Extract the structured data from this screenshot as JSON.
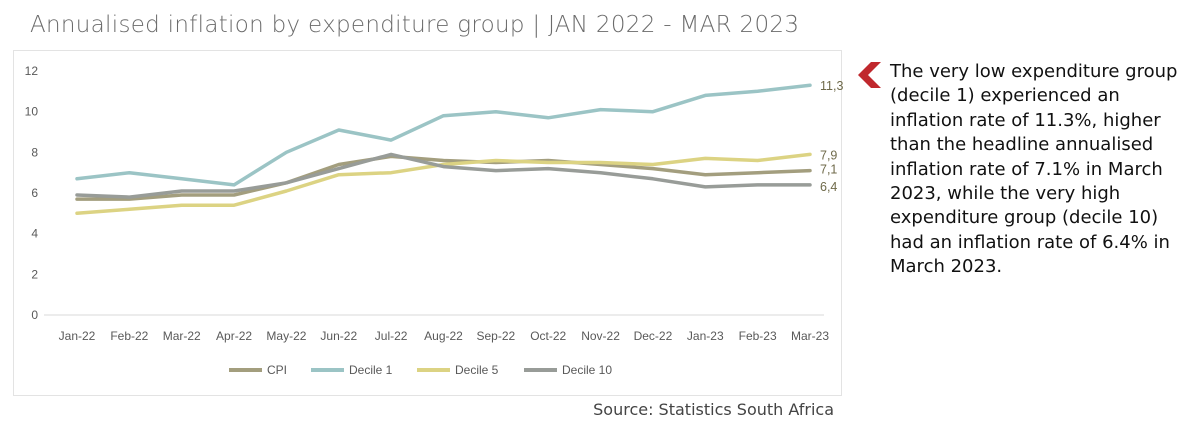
{
  "title": "Annualised inflation by expenditure group | JAN 2022 - MAR 2023",
  "commentary": "The very low expenditure group (decile 1) experienced an inflation rate of 11.3%, higher than the headline annualised inflation rate of 7.1% in March 2023, while the very high expenditure group (decile 10) had an inflation rate of 6.4% in March 2023.",
  "source": "Source: Statistics South Africa",
  "marker_icon": "chevron-left-icon",
  "marker_color": "#c0282d",
  "chart_data": {
    "type": "line",
    "title": "",
    "xlabel": "",
    "ylabel": "",
    "categories": [
      "Jan-22",
      "Feb-22",
      "Mar-22",
      "Apr-22",
      "May-22",
      "Jun-22",
      "Jul-22",
      "Aug-22",
      "Sep-22",
      "Oct-22",
      "Nov-22",
      "Dec-22",
      "Jan-23",
      "Feb-23",
      "Mar-23"
    ],
    "ylim": [
      0,
      12
    ],
    "yticks": [
      "0",
      "2",
      "4",
      "6",
      "8",
      "10",
      "12"
    ],
    "grid": false,
    "legend_position": "bottom",
    "series": [
      {
        "name": "CPI",
        "color": "#a39e7e",
        "end_label": "7,1",
        "values": [
          5.7,
          5.7,
          5.9,
          5.9,
          6.5,
          7.4,
          7.8,
          7.6,
          7.5,
          7.6,
          7.4,
          7.2,
          6.9,
          7.0,
          7.1
        ]
      },
      {
        "name": "Decile 1",
        "color": "#9bc4c5",
        "end_label": "11,3",
        "values": [
          6.7,
          7.0,
          6.7,
          6.4,
          8.0,
          9.1,
          8.6,
          9.8,
          10.0,
          9.7,
          10.1,
          10.0,
          10.8,
          11.0,
          11.3
        ]
      },
      {
        "name": "Decile 5",
        "color": "#dcd383",
        "end_label": "7,9",
        "values": [
          5.0,
          5.2,
          5.4,
          5.4,
          6.1,
          6.9,
          7.0,
          7.4,
          7.6,
          7.5,
          7.5,
          7.4,
          7.7,
          7.6,
          7.9
        ]
      },
      {
        "name": "Decile 10",
        "color": "#989c98",
        "end_label": "6,4",
        "values": [
          5.9,
          5.8,
          6.1,
          6.1,
          6.5,
          7.2,
          7.9,
          7.3,
          7.1,
          7.2,
          7.0,
          6.7,
          6.3,
          6.4,
          6.4
        ]
      }
    ]
  }
}
